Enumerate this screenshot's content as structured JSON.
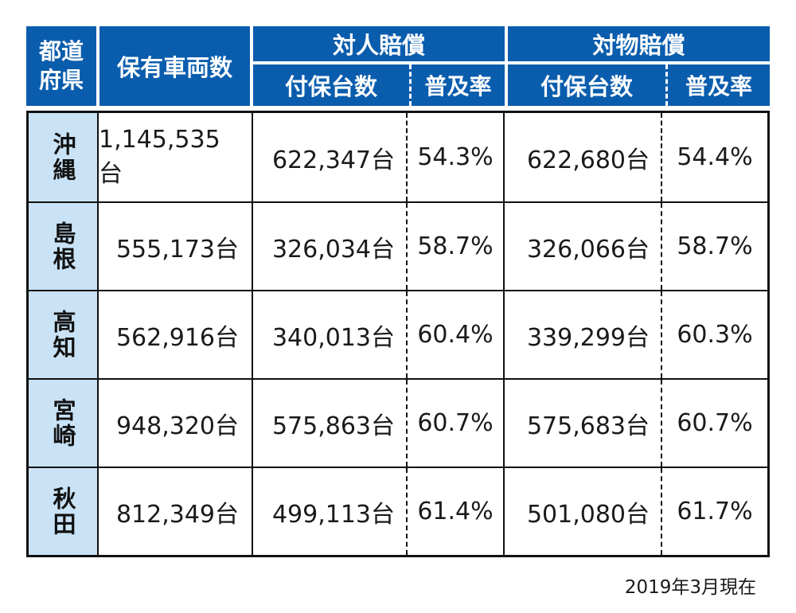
{
  "colors": {
    "header_blue": "#0a5dad",
    "prefecture_cell_blue": "#c9e2f5",
    "border_black": "#111111",
    "header_text": "#ffffff",
    "body_text": "#1a1a1a"
  },
  "chart_data": {
    "type": "table",
    "title": "",
    "note": "2019年3月現在",
    "header": {
      "prefecture_label": "都道\n府県",
      "vehicles_label": "保有車両数",
      "personal_group_label": "対人賠償",
      "property_group_label": "対物賠償",
      "insured_label": "付保台数",
      "rate_label": "普及率"
    },
    "columns": [
      "都道府県",
      "保有車両数",
      "対人賠償 付保台数",
      "対人賠償 普及率",
      "対物賠償 付保台数",
      "対物賠償 普及率"
    ],
    "rows": [
      {
        "prefecture": "沖縄",
        "vehicles": "1,145,535台",
        "personal_insured": "622,347台",
        "personal_rate": "54.3%",
        "property_insured": "622,680台",
        "property_rate": "54.4%"
      },
      {
        "prefecture": "島根",
        "vehicles": "555,173台",
        "personal_insured": "326,034台",
        "personal_rate": "58.7%",
        "property_insured": "326,066台",
        "property_rate": "58.7%"
      },
      {
        "prefecture": "高知",
        "vehicles": "562,916台",
        "personal_insured": "340,013台",
        "personal_rate": "60.4%",
        "property_insured": "339,299台",
        "property_rate": "60.3%"
      },
      {
        "prefecture": "宮崎",
        "vehicles": "948,320台",
        "personal_insured": "575,863台",
        "personal_rate": "60.7%",
        "property_insured": "575,683台",
        "property_rate": "60.7%"
      },
      {
        "prefecture": "秋田",
        "vehicles": "812,349台",
        "personal_insured": "499,113台",
        "personal_rate": "61.4%",
        "property_insured": "501,080台",
        "property_rate": "61.7%"
      }
    ]
  }
}
